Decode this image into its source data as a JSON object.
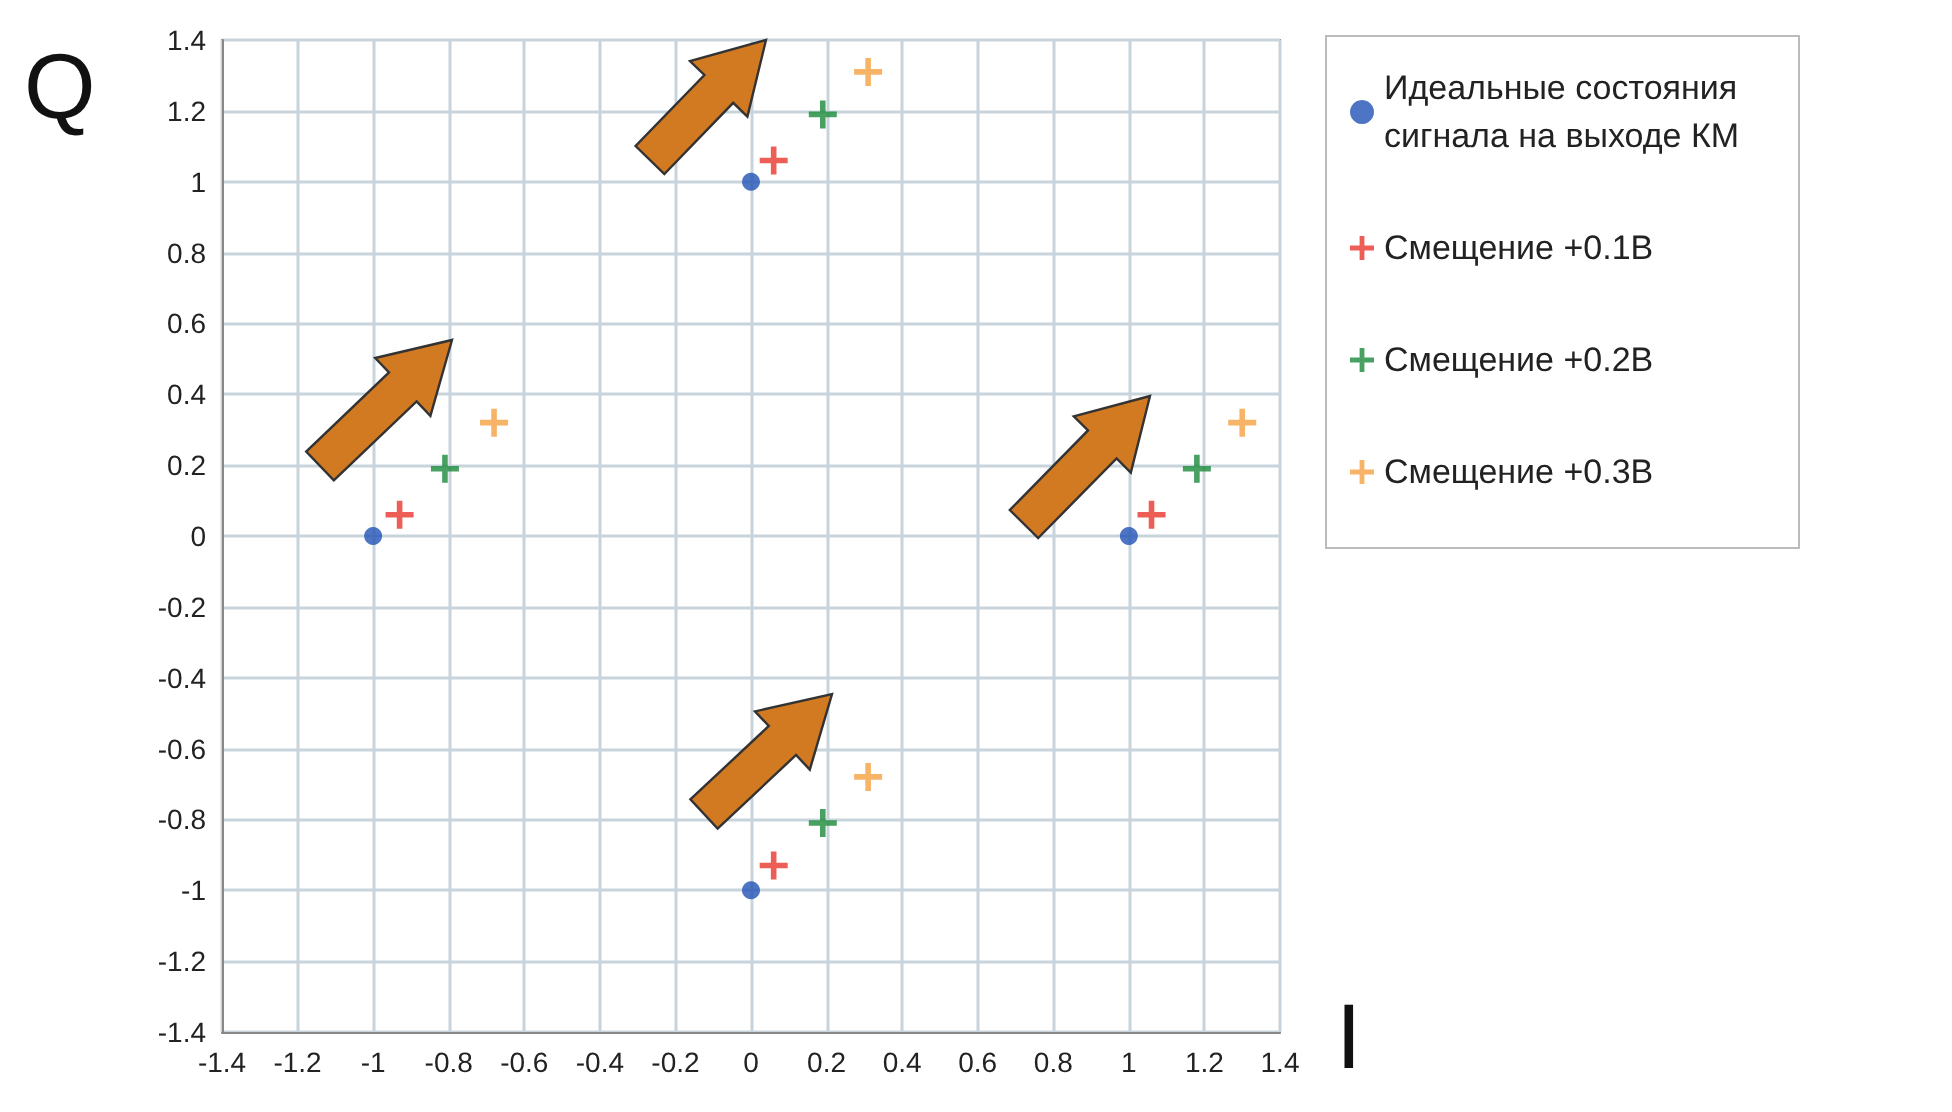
{
  "chart_data": {
    "type": "scatter",
    "xlabel": "I",
    "ylabel": "Q",
    "xlim": [
      -1.4,
      1.4
    ],
    "ylim": [
      -1.4,
      1.4
    ],
    "xticks": [
      -1.4,
      -1.2,
      -1,
      -0.8,
      -0.6,
      -0.4,
      -0.2,
      0,
      0.2,
      0.4,
      0.6,
      0.8,
      1,
      1.2,
      1.4
    ],
    "yticks": [
      -1.4,
      -1.2,
      -1,
      -0.8,
      -0.6,
      -0.4,
      -0.2,
      0,
      0.2,
      0.4,
      0.6,
      0.8,
      1,
      1.2,
      1.4
    ],
    "grid": true,
    "legend": "right",
    "series": [
      {
        "name": "Идеальные состояния сигнала на выходе КМ",
        "color": "#2152b5",
        "marker": "circle",
        "x": [
          -1,
          0,
          1,
          0
        ],
        "values": [
          0,
          1,
          0,
          -1
        ]
      },
      {
        "name": "Смещение +0.1В",
        "color": "#e8372c",
        "marker": "cross",
        "x": [
          -0.93,
          0.06,
          1.06,
          0.06
        ],
        "values": [
          0.06,
          1.06,
          0.06,
          -0.93
        ]
      },
      {
        "name": "Смещение +0.2В",
        "color": "#1a8a3a",
        "marker": "cross",
        "x": [
          -0.81,
          0.19,
          1.18,
          0.19
        ],
        "values": [
          0.19,
          1.19,
          0.19,
          -0.81
        ]
      },
      {
        "name": "Смещение +0.3В",
        "color": "#f5a040",
        "marker": "cross",
        "x": [
          -0.68,
          0.31,
          1.3,
          0.31
        ],
        "values": [
          0.32,
          1.31,
          0.32,
          -0.68
        ]
      }
    ]
  }
}
